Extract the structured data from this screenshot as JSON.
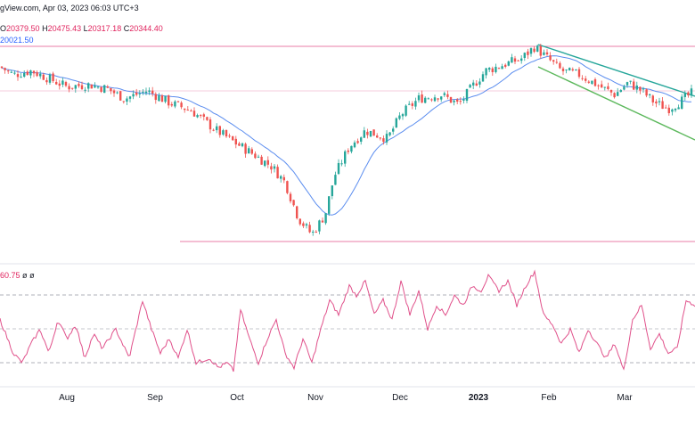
{
  "header": {
    "source_date": "gView.com, Apr 03, 2023 06:03 UTC+3",
    "o_label": "O",
    "o_value": "20379.50",
    "h_label": "H",
    "h_value": "20475.43",
    "l_label": "L",
    "l_value": "20317.18",
    "c_label": "C",
    "c_value": "20344.40",
    "ma_value": "20021.50"
  },
  "rsi_header": {
    "value": "60.75",
    "extra1": "ø",
    "extra2": "ø"
  },
  "colors": {
    "up": "#26a69a",
    "down": "#ef5350",
    "ma": "#5b8def",
    "rsi": "#e0508a",
    "hline": "#e0508a",
    "channel_upper": "#26a69a",
    "channel_lower": "#5cb85c"
  },
  "chart_data": {
    "type": "candlestick",
    "x_tick_labels": [
      "Aug",
      "Sep",
      "Oct",
      "Nov",
      "Dec",
      "2023",
      "Feb",
      "Mar"
    ],
    "horizontal_levels": [
      "resistance",
      "mid",
      "support"
    ],
    "channel": [
      "upper",
      "lower"
    ],
    "price_knots": [
      [
        0,
        0.88
      ],
      [
        15,
        0.84
      ],
      [
        35,
        0.86
      ],
      [
        55,
        0.82
      ],
      [
        75,
        0.78
      ],
      [
        100,
        0.79
      ],
      [
        120,
        0.77
      ],
      [
        140,
        0.72
      ],
      [
        165,
        0.76
      ],
      [
        190,
        0.7
      ],
      [
        215,
        0.66
      ],
      [
        240,
        0.57
      ],
      [
        260,
        0.51
      ],
      [
        285,
        0.44
      ],
      [
        305,
        0.38
      ],
      [
        320,
        0.3
      ],
      [
        335,
        0.12
      ],
      [
        350,
        0.04
      ],
      [
        365,
        0.14
      ],
      [
        375,
        0.33
      ],
      [
        392,
        0.48
      ],
      [
        410,
        0.56
      ],
      [
        435,
        0.52
      ],
      [
        450,
        0.64
      ],
      [
        470,
        0.72
      ],
      [
        495,
        0.74
      ],
      [
        515,
        0.69
      ],
      [
        530,
        0.78
      ],
      [
        545,
        0.86
      ],
      [
        565,
        0.89
      ],
      [
        585,
        0.92
      ],
      [
        600,
        0.98
      ],
      [
        615,
        0.92
      ],
      [
        630,
        0.86
      ],
      [
        650,
        0.84
      ],
      [
        670,
        0.79
      ],
      [
        690,
        0.74
      ],
      [
        705,
        0.8
      ],
      [
        720,
        0.76
      ],
      [
        735,
        0.7
      ],
      [
        750,
        0.67
      ],
      [
        765,
        0.71
      ],
      [
        780,
        0.76
      ]
    ],
    "rsi_knots": [
      [
        0,
        0.55
      ],
      [
        15,
        0.2
      ],
      [
        25,
        0.1
      ],
      [
        35,
        0.3
      ],
      [
        45,
        0.45
      ],
      [
        55,
        0.2
      ],
      [
        65,
        0.55
      ],
      [
        75,
        0.35
      ],
      [
        85,
        0.5
      ],
      [
        95,
        0.15
      ],
      [
        105,
        0.4
      ],
      [
        115,
        0.25
      ],
      [
        130,
        0.45
      ],
      [
        145,
        0.15
      ],
      [
        160,
        0.75
      ],
      [
        170,
        0.45
      ],
      [
        180,
        0.2
      ],
      [
        190,
        0.35
      ],
      [
        200,
        0.15
      ],
      [
        210,
        0.45
      ],
      [
        220,
        0.1
      ],
      [
        235,
        0.15
      ],
      [
        245,
        0.05
      ],
      [
        255,
        0.1
      ],
      [
        262,
        0.02
      ],
      [
        270,
        0.65
      ],
      [
        280,
        0.35
      ],
      [
        290,
        0.1
      ],
      [
        300,
        0.35
      ],
      [
        310,
        0.55
      ],
      [
        320,
        0.2
      ],
      [
        330,
        0.05
      ],
      [
        340,
        0.35
      ],
      [
        350,
        0.1
      ],
      [
        360,
        0.45
      ],
      [
        370,
        0.75
      ],
      [
        380,
        0.6
      ],
      [
        392,
        0.9
      ],
      [
        400,
        0.8
      ],
      [
        410,
        0.95
      ],
      [
        420,
        0.6
      ],
      [
        430,
        0.75
      ],
      [
        440,
        0.55
      ],
      [
        450,
        0.95
      ],
      [
        460,
        0.6
      ],
      [
        470,
        0.85
      ],
      [
        480,
        0.45
      ],
      [
        490,
        0.7
      ],
      [
        500,
        0.6
      ],
      [
        510,
        0.8
      ],
      [
        520,
        0.7
      ],
      [
        530,
        0.9
      ],
      [
        540,
        0.85
      ],
      [
        548,
        1.0
      ],
      [
        560,
        0.85
      ],
      [
        570,
        0.95
      ],
      [
        580,
        0.7
      ],
      [
        590,
        0.9
      ],
      [
        600,
        1.05
      ],
      [
        610,
        0.6
      ],
      [
        620,
        0.5
      ],
      [
        630,
        0.3
      ],
      [
        640,
        0.45
      ],
      [
        650,
        0.2
      ],
      [
        660,
        0.45
      ],
      [
        670,
        0.3
      ],
      [
        680,
        0.15
      ],
      [
        690,
        0.3
      ],
      [
        700,
        0.02
      ],
      [
        710,
        0.55
      ],
      [
        720,
        0.7
      ],
      [
        730,
        0.25
      ],
      [
        740,
        0.4
      ],
      [
        750,
        0.2
      ],
      [
        760,
        0.25
      ],
      [
        770,
        0.75
      ],
      [
        780,
        0.7
      ]
    ]
  }
}
